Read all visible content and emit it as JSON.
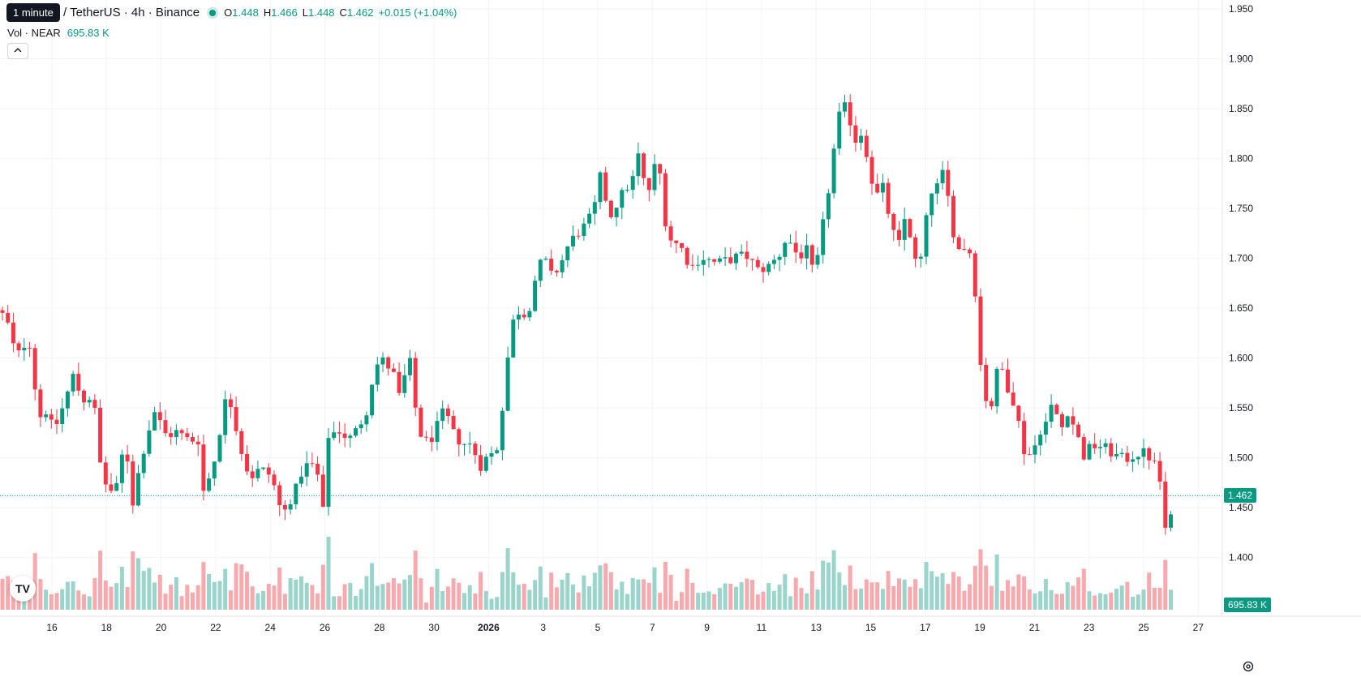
{
  "tooltip": "1 minute",
  "legend": {
    "symbol": "/ TetherUS · 4h · Binance",
    "open_k": "O",
    "open": "1.448",
    "high_k": "H",
    "high": "1.466",
    "low_k": "L",
    "low": "1.448",
    "close_k": "C",
    "close": "1.462",
    "change": "+0.015 (+1.04%)"
  },
  "volume_legend": {
    "label": "Vol · NEAR",
    "value": "695.83 K"
  },
  "collapse_icon": "chevron-up-icon",
  "logo_text": "TV",
  "price_tag": "1.462",
  "volume_tag": "695.83 K",
  "settings_icon": "gear-icon",
  "colors": {
    "up": "#089981",
    "down": "#f23645",
    "up_vol": "#9ad4cb",
    "down_vol": "#f7a9ae",
    "grid": "#f0f3fa"
  },
  "chart_data": {
    "type": "candlestick",
    "y_ticks": [
      "1.950",
      "1.900",
      "1.850",
      "1.800",
      "1.750",
      "1.700",
      "1.650",
      "1.600",
      "1.550",
      "1.500",
      "1.450",
      "1.400"
    ],
    "ylim": [
      1.39,
      1.955
    ],
    "x_ticks": [
      "16",
      "18",
      "20",
      "22",
      "24",
      "26",
      "28",
      "30",
      "2026",
      "3",
      "5",
      "7",
      "9",
      "11",
      "13",
      "15",
      "17",
      "19",
      "21",
      "23",
      "25",
      "27"
    ],
    "current_price": 1.462,
    "close_path": [
      [
        0,
        1.648
      ],
      [
        12,
        1.63
      ],
      [
        20,
        1.598
      ],
      [
        27,
        1.612
      ],
      [
        36,
        1.618
      ],
      [
        48,
        1.54
      ],
      [
        57,
        1.548
      ],
      [
        66,
        1.526
      ],
      [
        78,
        1.552
      ],
      [
        90,
        1.582
      ],
      [
        102,
        1.558
      ],
      [
        114,
        1.562
      ],
      [
        120,
        1.53
      ],
      [
        125,
        1.48
      ],
      [
        132,
        1.472
      ],
      [
        140,
        1.464
      ],
      [
        149,
        1.478
      ],
      [
        154,
        1.562
      ],
      [
        160,
        1.44
      ],
      [
        170,
        1.482
      ],
      [
        178,
        1.512
      ],
      [
        190,
        1.548
      ],
      [
        205,
        1.522
      ],
      [
        218,
        1.526
      ],
      [
        232,
        1.518
      ],
      [
        246,
        1.518
      ],
      [
        250,
        1.465
      ],
      [
        262,
        1.488
      ],
      [
        272,
        1.532
      ],
      [
        280,
        1.565
      ],
      [
        287,
        1.548
      ],
      [
        296,
        1.512
      ],
      [
        308,
        1.48
      ],
      [
        320,
        1.488
      ],
      [
        330,
        1.486
      ],
      [
        340,
        1.468
      ],
      [
        348,
        1.44
      ],
      [
        356,
        1.456
      ],
      [
        366,
        1.47
      ],
      [
        374,
        1.492
      ],
      [
        390,
        1.492
      ],
      [
        398,
        1.442
      ],
      [
        404,
        1.522
      ],
      [
        418,
        1.528
      ],
      [
        430,
        1.518
      ],
      [
        440,
        1.528
      ],
      [
        452,
        1.548
      ],
      [
        462,
        1.592
      ],
      [
        474,
        1.598
      ],
      [
        486,
        1.582
      ],
      [
        494,
        1.555
      ],
      [
        502,
        1.598
      ],
      [
        508,
        1.592
      ],
      [
        514,
        1.532
      ],
      [
        524,
        1.515
      ],
      [
        534,
        1.522
      ],
      [
        548,
        1.548
      ],
      [
        560,
        1.522
      ],
      [
        570,
        1.515
      ],
      [
        582,
        1.512
      ],
      [
        592,
        1.492
      ],
      [
        602,
        1.502
      ],
      [
        612,
        1.506
      ],
      [
        622,
        1.568
      ],
      [
        630,
        1.632
      ],
      [
        640,
        1.648
      ],
      [
        650,
        1.642
      ],
      [
        660,
        1.68
      ],
      [
        670,
        1.702
      ],
      [
        680,
        1.682
      ],
      [
        690,
        1.692
      ],
      [
        700,
        1.712
      ],
      [
        712,
        1.726
      ],
      [
        724,
        1.734
      ],
      [
        736,
        1.758
      ],
      [
        742,
        1.792
      ],
      [
        750,
        1.738
      ],
      [
        758,
        1.752
      ],
      [
        770,
        1.768
      ],
      [
        782,
        1.782
      ],
      [
        790,
        1.816
      ],
      [
        796,
        1.752
      ],
      [
        806,
        1.792
      ],
      [
        816,
        1.782
      ],
      [
        822,
        1.722
      ],
      [
        830,
        1.718
      ],
      [
        842,
        1.708
      ],
      [
        852,
        1.69
      ],
      [
        864,
        1.702
      ],
      [
        874,
        1.698
      ],
      [
        884,
        1.695
      ],
      [
        896,
        1.698
      ],
      [
        910,
        1.702
      ],
      [
        922,
        1.702
      ],
      [
        934,
        1.688
      ],
      [
        948,
        1.692
      ],
      [
        960,
        1.702
      ],
      [
        970,
        1.722
      ],
      [
        984,
        1.702
      ],
      [
        996,
        1.708
      ],
      [
        1004,
        1.678
      ],
      [
        1014,
        1.73
      ],
      [
        1022,
        1.772
      ],
      [
        1030,
        1.82
      ],
      [
        1036,
        1.848
      ],
      [
        1044,
        1.852
      ],
      [
        1054,
        1.818
      ],
      [
        1064,
        1.828
      ],
      [
        1072,
        1.788
      ],
      [
        1080,
        1.762
      ],
      [
        1090,
        1.772
      ],
      [
        1098,
        1.732
      ],
      [
        1108,
        1.712
      ],
      [
        1116,
        1.742
      ],
      [
        1124,
        1.718
      ],
      [
        1132,
        1.68
      ],
      [
        1140,
        1.728
      ],
      [
        1148,
        1.768
      ],
      [
        1156,
        1.772
      ],
      [
        1164,
        1.788
      ],
      [
        1172,
        1.742
      ],
      [
        1180,
        1.708
      ],
      [
        1190,
        1.712
      ],
      [
        1200,
        1.702
      ],
      [
        1206,
        1.612
      ],
      [
        1214,
        1.562
      ],
      [
        1222,
        1.552
      ],
      [
        1232,
        1.598
      ],
      [
        1242,
        1.572
      ],
      [
        1252,
        1.552
      ],
      [
        1262,
        1.508
      ],
      [
        1272,
        1.502
      ],
      [
        1282,
        1.528
      ],
      [
        1292,
        1.538
      ],
      [
        1300,
        1.562
      ],
      [
        1306,
        1.522
      ],
      [
        1316,
        1.548
      ],
      [
        1326,
        1.528
      ],
      [
        1336,
        1.502
      ],
      [
        1346,
        1.512
      ],
      [
        1356,
        1.512
      ],
      [
        1366,
        1.508
      ],
      [
        1376,
        1.502
      ],
      [
        1386,
        1.498
      ],
      [
        1396,
        1.502
      ],
      [
        1406,
        1.506
      ],
      [
        1416,
        1.502
      ],
      [
        1424,
        1.492
      ],
      [
        1432,
        1.472
      ],
      [
        1438,
        1.418
      ],
      [
        1444,
        1.44
      ],
      [
        1450,
        1.462
      ]
    ],
    "volume_scale_max": 100
  }
}
